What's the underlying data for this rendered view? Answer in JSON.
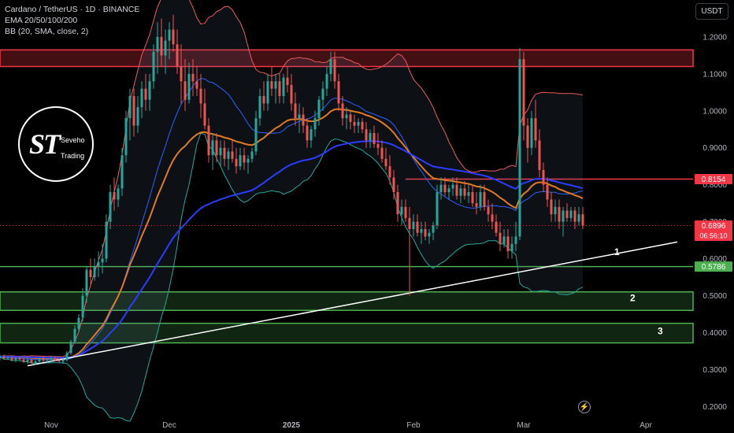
{
  "legend": {
    "symbol": "Cardano / TetherUS · 1D · BINANCE",
    "ema": "EMA 20/50/100/200",
    "bb": "BB (20, SMA, close, 2)"
  },
  "currency": "USDT",
  "logo": {
    "mark": "ST",
    "line1": "Seveho",
    "line2": "Trading"
  },
  "icons": {
    "bolt": "lightning-icon"
  },
  "colors": {
    "background": "#000000",
    "up": "#26a69a",
    "down": "#ef5350",
    "ema_orange": "#e07b24",
    "ema_blue": "#2b3cff",
    "bb_basis": "#2962ff",
    "bb_band": "#e85c5c",
    "bb_lower": "#26a69a",
    "resistance": "#f23645",
    "support": "#4caf50",
    "trendline": "#ffffff"
  },
  "chart_data": {
    "type": "candlestick",
    "y_ticks": [
      "1.2000",
      "1.1000",
      "1.0000",
      "0.9000",
      "0.8000",
      "0.7000",
      "0.6000",
      "0.5000",
      "0.4000",
      "0.3000",
      "0.2000"
    ],
    "y_tick_values": [
      1.2,
      1.1,
      1.0,
      0.9,
      0.8,
      0.7,
      0.6,
      0.5,
      0.4,
      0.3,
      0.2
    ],
    "ylim": [
      0.175,
      1.3
    ],
    "x_labels": [
      {
        "label": "Nov",
        "day": 0
      },
      {
        "label": "Dec",
        "day": 30
      },
      {
        "label": "2025",
        "day": 61
      },
      {
        "label": "Feb",
        "day": 92
      },
      {
        "label": "Mar",
        "day": 120
      },
      {
        "label": "Apr",
        "day": 151
      }
    ],
    "xlim_days": [
      -13,
      163
    ],
    "price_badges": [
      {
        "label": "0.8154",
        "value": 0.8154,
        "color": "#f23645"
      },
      {
        "label": "0.6896",
        "value": 0.6896,
        "sub": "06:56:10",
        "color": "#f23645"
      },
      {
        "label": "0.5786",
        "value": 0.5786,
        "color": "#4caf50"
      }
    ],
    "last_price": 0.6896,
    "zones": [
      {
        "kind": "resistance",
        "from": 1.12,
        "to": 1.165,
        "color": "#f23645"
      },
      {
        "kind": "support",
        "label": "2",
        "from": 0.46,
        "to": 0.51,
        "color": "#4caf50"
      },
      {
        "kind": "support",
        "label": "3",
        "from": 0.372,
        "to": 0.425,
        "color": "#4caf50"
      }
    ],
    "levels": [
      {
        "label": "",
        "value": 0.8154,
        "from_day": 90,
        "color": "#f23645"
      },
      {
        "label": "1",
        "value": 0.5786,
        "color": "#4caf50"
      }
    ],
    "level_labels": [
      {
        "label": "1",
        "value": 0.61,
        "day": 143
      },
      {
        "label": "2",
        "value": 0.485,
        "day": 147
      },
      {
        "label": "3",
        "value": 0.395,
        "day": 154
      }
    ],
    "trendline": {
      "from": {
        "day": -6,
        "value": 0.31
      },
      "to": {
        "day": 159,
        "value": 0.645
      }
    },
    "candles": [
      [
        -13,
        0.33,
        0.34,
        0.325,
        0.335
      ],
      [
        -12,
        0.335,
        0.34,
        0.328,
        0.33
      ],
      [
        -11,
        0.33,
        0.338,
        0.326,
        0.332
      ],
      [
        -10,
        0.332,
        0.336,
        0.322,
        0.326
      ],
      [
        -9,
        0.326,
        0.334,
        0.32,
        0.33
      ],
      [
        -8,
        0.33,
        0.336,
        0.325,
        0.327
      ],
      [
        -7,
        0.327,
        0.332,
        0.318,
        0.322
      ],
      [
        -6,
        0.322,
        0.33,
        0.315,
        0.326
      ],
      [
        -5,
        0.326,
        0.33,
        0.315,
        0.318
      ],
      [
        -4,
        0.318,
        0.326,
        0.312,
        0.322
      ],
      [
        -3,
        0.322,
        0.332,
        0.318,
        0.328
      ],
      [
        -2,
        0.328,
        0.334,
        0.32,
        0.324
      ],
      [
        -1,
        0.324,
        0.33,
        0.318,
        0.326
      ],
      [
        0,
        0.326,
        0.334,
        0.32,
        0.33
      ],
      [
        1,
        0.33,
        0.336,
        0.322,
        0.325
      ],
      [
        2,
        0.325,
        0.33,
        0.318,
        0.322
      ],
      [
        3,
        0.322,
        0.33,
        0.315,
        0.326
      ],
      [
        4,
        0.326,
        0.35,
        0.322,
        0.345
      ],
      [
        5,
        0.345,
        0.38,
        0.34,
        0.375
      ],
      [
        6,
        0.375,
        0.42,
        0.37,
        0.41
      ],
      [
        7,
        0.41,
        0.45,
        0.4,
        0.44
      ],
      [
        8,
        0.44,
        0.52,
        0.43,
        0.5
      ],
      [
        9,
        0.5,
        0.58,
        0.48,
        0.57
      ],
      [
        10,
        0.57,
        0.6,
        0.53,
        0.55
      ],
      [
        11,
        0.55,
        0.6,
        0.54,
        0.58
      ],
      [
        12,
        0.58,
        0.62,
        0.55,
        0.59
      ],
      [
        13,
        0.59,
        0.64,
        0.56,
        0.6
      ],
      [
        14,
        0.6,
        0.72,
        0.59,
        0.7
      ],
      [
        15,
        0.7,
        0.8,
        0.68,
        0.78
      ],
      [
        16,
        0.78,
        0.82,
        0.73,
        0.76
      ],
      [
        17,
        0.76,
        0.8,
        0.74,
        0.79
      ],
      [
        18,
        0.79,
        0.9,
        0.77,
        0.88
      ],
      [
        19,
        0.88,
        1.0,
        0.86,
        0.98
      ],
      [
        20,
        0.98,
        1.06,
        0.92,
        1.04
      ],
      [
        21,
        1.04,
        1.06,
        0.93,
        0.96
      ],
      [
        22,
        0.96,
        1.04,
        0.94,
        1.01
      ],
      [
        23,
        1.01,
        1.08,
        0.98,
        1.06
      ],
      [
        24,
        1.06,
        1.1,
        1.0,
        1.03
      ],
      [
        25,
        1.03,
        1.1,
        1.0,
        1.08
      ],
      [
        26,
        1.08,
        1.18,
        1.06,
        1.16
      ],
      [
        27,
        1.16,
        1.24,
        1.1,
        1.2
      ],
      [
        28,
        1.2,
        1.25,
        1.12,
        1.15
      ],
      [
        29,
        1.15,
        1.22,
        1.1,
        1.19
      ],
      [
        30,
        1.19,
        1.24,
        1.14,
        1.22
      ],
      [
        31,
        1.22,
        1.26,
        1.16,
        1.18
      ],
      [
        32,
        1.18,
        1.22,
        1.1,
        1.12
      ],
      [
        33,
        1.12,
        1.18,
        1.02,
        1.08
      ],
      [
        34,
        1.08,
        1.14,
        1.0,
        1.03
      ],
      [
        35,
        1.03,
        1.13,
        1.02,
        1.1
      ],
      [
        36,
        1.1,
        1.14,
        1.04,
        1.08
      ],
      [
        37,
        1.08,
        1.12,
        1.04,
        1.06
      ],
      [
        38,
        1.06,
        1.1,
        0.98,
        1.02
      ],
      [
        39,
        1.02,
        1.06,
        0.95,
        0.96
      ],
      [
        40,
        0.96,
        0.98,
        0.86,
        0.88
      ],
      [
        41,
        0.88,
        0.94,
        0.84,
        0.92
      ],
      [
        42,
        0.92,
        0.94,
        0.86,
        0.88
      ],
      [
        43,
        0.88,
        0.92,
        0.85,
        0.9
      ],
      [
        44,
        0.9,
        0.92,
        0.85,
        0.87
      ],
      [
        45,
        0.87,
        0.9,
        0.84,
        0.89
      ],
      [
        46,
        0.89,
        0.92,
        0.86,
        0.87
      ],
      [
        47,
        0.87,
        0.9,
        0.83,
        0.85
      ],
      [
        48,
        0.85,
        0.9,
        0.84,
        0.88
      ],
      [
        49,
        0.88,
        0.9,
        0.84,
        0.86
      ],
      [
        50,
        0.86,
        0.88,
        0.83,
        0.87
      ],
      [
        51,
        0.87,
        0.9,
        0.86,
        0.89
      ],
      [
        52,
        0.89,
        1.0,
        0.88,
        0.98
      ],
      [
        53,
        0.98,
        1.06,
        0.96,
        1.04
      ],
      [
        54,
        1.04,
        1.08,
        1.0,
        1.02
      ],
      [
        55,
        1.02,
        1.1,
        1.0,
        1.08
      ],
      [
        56,
        1.08,
        1.12,
        1.04,
        1.06
      ],
      [
        57,
        1.06,
        1.1,
        1.02,
        1.08
      ],
      [
        58,
        1.08,
        1.1,
        1.02,
        1.04
      ],
      [
        59,
        1.04,
        1.1,
        1.02,
        1.09
      ],
      [
        60,
        1.09,
        1.12,
        1.05,
        1.07
      ],
      [
        61,
        1.07,
        1.1,
        1.0,
        1.02
      ],
      [
        62,
        1.02,
        1.05,
        0.96,
        0.98
      ],
      [
        63,
        0.98,
        1.02,
        0.94,
        0.99
      ],
      [
        64,
        0.99,
        1.01,
        0.94,
        0.96
      ],
      [
        65,
        0.96,
        0.98,
        0.9,
        0.92
      ],
      [
        66,
        0.92,
        0.96,
        0.9,
        0.95
      ],
      [
        67,
        0.95,
        1.0,
        0.93,
        0.98
      ],
      [
        68,
        0.98,
        1.04,
        0.96,
        1.03
      ],
      [
        69,
        1.03,
        1.08,
        1.0,
        1.06
      ],
      [
        70,
        1.06,
        1.12,
        1.04,
        1.1
      ],
      [
        71,
        1.1,
        1.16,
        1.08,
        1.14
      ],
      [
        72,
        1.14,
        1.16,
        1.06,
        1.08
      ],
      [
        73,
        1.08,
        1.1,
        1.0,
        1.02
      ],
      [
        74,
        1.02,
        1.04,
        0.96,
        0.98
      ],
      [
        75,
        0.98,
        1.01,
        0.95,
        0.99
      ],
      [
        76,
        0.99,
        1.0,
        0.95,
        0.97
      ],
      [
        77,
        0.97,
        0.99,
        0.94,
        0.96
      ],
      [
        78,
        0.96,
        0.98,
        0.94,
        0.97
      ],
      [
        79,
        0.97,
        0.98,
        0.94,
        0.95
      ],
      [
        80,
        0.95,
        0.97,
        0.9,
        0.92
      ],
      [
        81,
        0.92,
        0.95,
        0.9,
        0.94
      ],
      [
        82,
        0.94,
        0.96,
        0.9,
        0.91
      ],
      [
        83,
        0.91,
        0.94,
        0.88,
        0.9
      ],
      [
        84,
        0.9,
        0.92,
        0.86,
        0.87
      ],
      [
        85,
        0.87,
        0.9,
        0.84,
        0.85
      ],
      [
        86,
        0.85,
        0.88,
        0.8,
        0.82
      ],
      [
        87,
        0.82,
        0.84,
        0.76,
        0.78
      ],
      [
        88,
        0.78,
        0.8,
        0.7,
        0.72
      ],
      [
        89,
        0.72,
        0.76,
        0.69,
        0.74
      ],
      [
        90,
        0.74,
        0.76,
        0.7,
        0.71
      ],
      [
        91,
        0.71,
        0.74,
        0.5,
        0.68
      ],
      [
        92,
        0.68,
        0.72,
        0.66,
        0.7
      ],
      [
        93,
        0.7,
        0.72,
        0.66,
        0.67
      ],
      [
        94,
        0.67,
        0.7,
        0.64,
        0.68
      ],
      [
        95,
        0.68,
        0.7,
        0.65,
        0.66
      ],
      [
        96,
        0.66,
        0.68,
        0.64,
        0.67
      ],
      [
        97,
        0.67,
        0.7,
        0.65,
        0.69
      ],
      [
        98,
        0.69,
        0.8,
        0.68,
        0.78
      ],
      [
        99,
        0.78,
        0.82,
        0.76,
        0.8
      ],
      [
        100,
        0.8,
        0.82,
        0.77,
        0.78
      ],
      [
        101,
        0.78,
        0.8,
        0.76,
        0.79
      ],
      [
        102,
        0.79,
        0.82,
        0.77,
        0.8
      ],
      [
        103,
        0.8,
        0.82,
        0.76,
        0.77
      ],
      [
        104,
        0.77,
        0.8,
        0.75,
        0.79
      ],
      [
        105,
        0.79,
        0.81,
        0.76,
        0.77
      ],
      [
        106,
        0.77,
        0.8,
        0.75,
        0.78
      ],
      [
        107,
        0.78,
        0.8,
        0.74,
        0.75
      ],
      [
        108,
        0.75,
        0.78,
        0.72,
        0.74
      ],
      [
        109,
        0.74,
        0.8,
        0.73,
        0.78
      ],
      [
        110,
        0.78,
        0.8,
        0.73,
        0.74
      ],
      [
        111,
        0.74,
        0.76,
        0.7,
        0.72
      ],
      [
        112,
        0.72,
        0.75,
        0.68,
        0.7
      ],
      [
        113,
        0.7,
        0.72,
        0.66,
        0.67
      ],
      [
        114,
        0.67,
        0.7,
        0.62,
        0.64
      ],
      [
        115,
        0.64,
        0.68,
        0.63,
        0.66
      ],
      [
        116,
        0.66,
        0.68,
        0.6,
        0.62
      ],
      [
        117,
        0.62,
        0.66,
        0.6,
        0.64
      ],
      [
        118,
        0.64,
        0.7,
        0.62,
        0.66
      ],
      [
        119,
        0.66,
        1.17,
        0.65,
        1.14
      ],
      [
        120,
        1.14,
        1.16,
        0.92,
        0.96
      ],
      [
        121,
        0.96,
        0.98,
        0.86,
        0.9
      ],
      [
        122,
        0.9,
        1.0,
        0.88,
        0.98
      ],
      [
        123,
        0.98,
        1.03,
        0.9,
        0.92
      ],
      [
        124,
        0.92,
        0.95,
        0.82,
        0.84
      ],
      [
        125,
        0.84,
        0.86,
        0.78,
        0.8
      ],
      [
        126,
        0.8,
        0.82,
        0.74,
        0.76
      ],
      [
        127,
        0.76,
        0.78,
        0.7,
        0.72
      ],
      [
        128,
        0.72,
        0.76,
        0.7,
        0.74
      ],
      [
        129,
        0.74,
        0.76,
        0.68,
        0.7
      ],
      [
        130,
        0.7,
        0.74,
        0.66,
        0.73
      ],
      [
        131,
        0.73,
        0.75,
        0.7,
        0.71
      ],
      [
        132,
        0.71,
        0.74,
        0.7,
        0.73
      ],
      [
        133,
        0.73,
        0.74,
        0.68,
        0.7
      ],
      [
        134,
        0.7,
        0.74,
        0.69,
        0.72
      ],
      [
        135,
        0.72,
        0.74,
        0.68,
        0.69
      ]
    ]
  }
}
